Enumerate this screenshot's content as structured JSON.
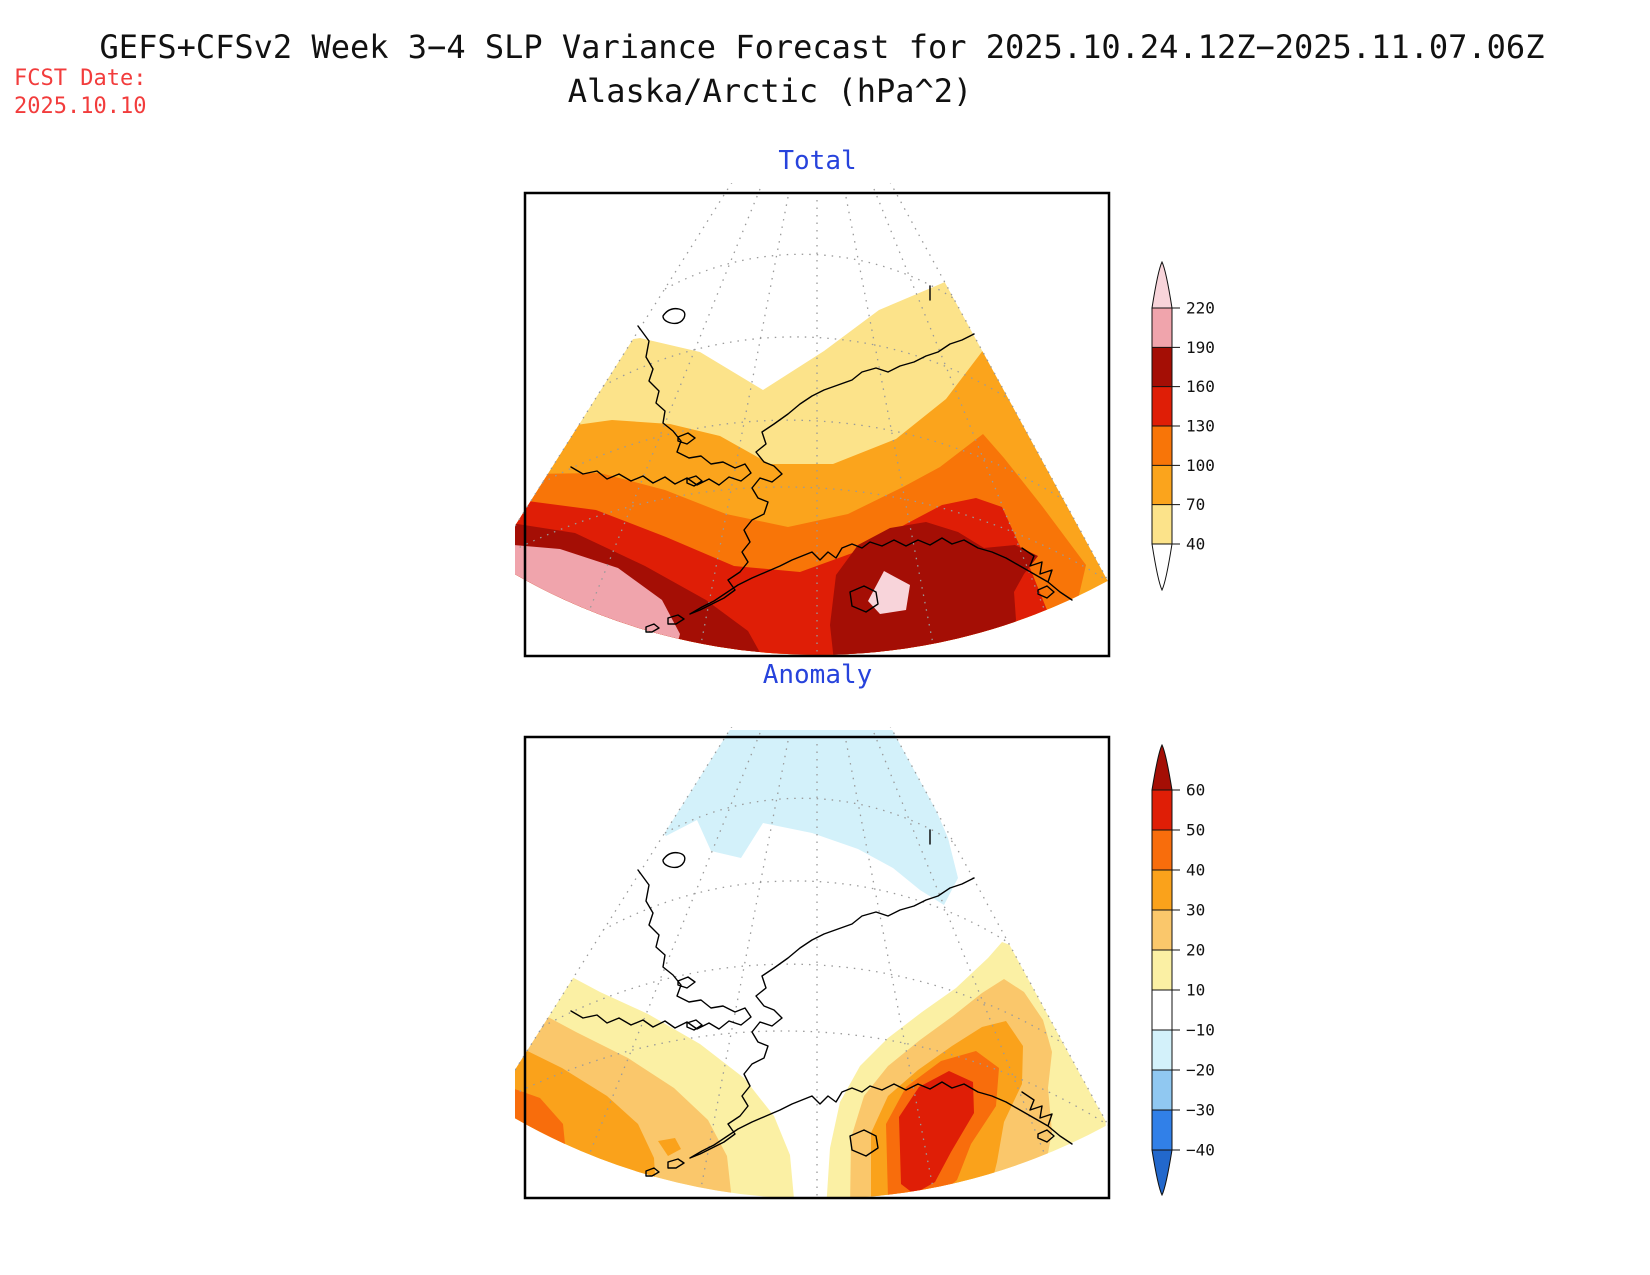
{
  "header": {
    "title": "GEFS+CFSv2 Week 3−4 SLP Variance Forecast for 2025.10.24.12Z−2025.11.07.06Z",
    "subtitle": "Alaska/Arctic (hPa^2)",
    "fcst_label": "FCST Date:",
    "fcst_date": "2025.10.10",
    "title_color": "#111111",
    "fcst_color": "#f23c3c",
    "panel_title_color": "#2743dc"
  },
  "panels": [
    {
      "title": "Total",
      "colorbar": {
        "tick_labels": [
          "220",
          "190",
          "160",
          "130",
          "100",
          "70",
          "40"
        ],
        "segment_colors_top_to_bottom": [
          "#F0A4AC",
          "#A40E05",
          "#DF1E06",
          "#F87508",
          "#FBA41C",
          "#FCE38A"
        ],
        "tip_top_color": "#F8D4DA",
        "tip_bottom_color": "#FFFFFF"
      }
    },
    {
      "title": "Anomaly",
      "colorbar": {
        "tick_labels": [
          "60",
          "50",
          "40",
          "30",
          "20",
          "10",
          "−10",
          "−20",
          "−30",
          "−40"
        ],
        "segment_colors_top_to_bottom": [
          "#DF1E06",
          "#F86D0C",
          "#FAA21B",
          "#FAC76B",
          "#FBF0A4",
          "#FFFFFF",
          "#D3F1FA",
          "#90C8F1",
          "#3180E8"
        ],
        "tip_top_color": "#A40E05",
        "tip_bottom_color": "#2268CC"
      }
    }
  ],
  "palette": {
    "total": {
      "lt40": "#FFFFFF",
      "p40": "#FCE38A",
      "p70": "#FBA41C",
      "p100": "#F87508",
      "p130": "#DF1E06",
      "p160": "#A40E05",
      "p190": "#F0A4AC",
      "p220": "#F8D4DA"
    },
    "anomaly": {
      "n10": "#D3F1FA",
      "zero": "#FFFFFF",
      "p10": "#FBF0A4",
      "p20": "#FAC76B",
      "p30": "#FAA21B",
      "p40": "#F86D0C",
      "p50": "#DF1E06"
    }
  },
  "chart_data": [
    {
      "type": "heatmap",
      "subtype": "filled_contour_map",
      "title": "Total",
      "region": "Alaska/Arctic",
      "projection": "polar stereographic sector (fan-shaped wedge, pole toward top)",
      "units": "hPa^2",
      "contour_levels": [
        40,
        70,
        100,
        130,
        160,
        190,
        220
      ],
      "palette": [
        "#FFFFFF",
        "#FCE38A",
        "#FBA41C",
        "#F87508",
        "#DF1E06",
        "#A40E05",
        "#F0A4AC",
        "#F8D4DA"
      ],
      "legend_position": "right",
      "pattern": "Variance below 40 over the Arctic (top of wedge), increasing southward through 40-70, 70-100 and 100-130 bands across Alaska, 130-160 and 160-190 along the Bering Sea / Gulf of Alaska, 190-220 (pink) over the far southwest North Pacific corner, and a small >220 (pale pink) maximum embedded in dark red south of Kodiak / Gulf of Alaska at the bottom."
    },
    {
      "type": "heatmap",
      "subtype": "filled_contour_map",
      "title": "Anomaly",
      "region": "Alaska/Arctic",
      "projection": "polar stereographic sector (fan-shaped wedge, pole toward top)",
      "units": "hPa^2",
      "contour_levels": [
        -40,
        -30,
        -20,
        -10,
        10,
        20,
        30,
        40,
        50,
        60
      ],
      "palette": [
        "#2268CC",
        "#3180E8",
        "#90C8F1",
        "#D3F1FA",
        "#FFFFFF",
        "#FBF0A4",
        "#FAC76B",
        "#FAA21B",
        "#F86D0C",
        "#DF1E06"
      ],
      "legend_position": "right",
      "pattern": "Weak negative anomaly (-10 to -20, pale cyan) over the Arctic Ocean at the top of the wedge, near-zero (white) over interior Alaska/Chukotka, positive anomalies along the bottom: 30-40 with a 40-50 core in the southwest corner, and a strong maximum of 50-60 (red core) ringed by 40-50/30-40/20-30/10-20 over the Gulf of Alaska at bottom right."
    }
  ]
}
